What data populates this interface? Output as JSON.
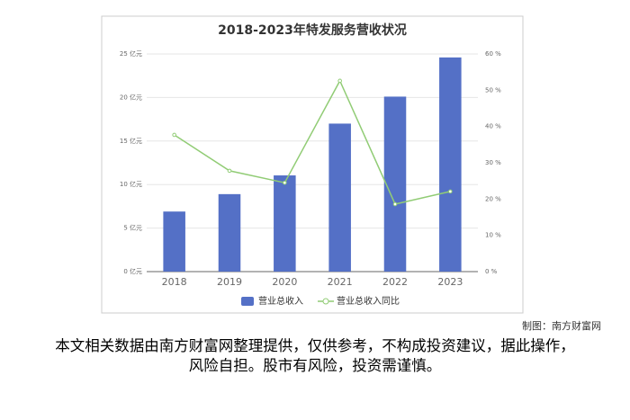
{
  "chart_data": {
    "type": "bar",
    "title": "2018-2023年特发服务营收状况",
    "categories": [
      "2018",
      "2019",
      "2020",
      "2021",
      "2022",
      "2023"
    ],
    "series": [
      {
        "name": "营业总收入",
        "type": "bar",
        "color": "#5470c6",
        "values": [
          6.9,
          8.9,
          11.05,
          17.0,
          20.1,
          24.6
        ]
      },
      {
        "name": "营业总收入同比",
        "type": "line",
        "axis": "y2",
        "color": "#91cc75",
        "values": [
          37.7,
          27.8,
          24.5,
          52.6,
          18.6,
          22.1
        ]
      }
    ],
    "ylim": [
      0,
      25
    ],
    "yticks": [
      {
        "value": 0,
        "label": "0 亿元"
      },
      {
        "value": 5,
        "label": "5 亿元"
      },
      {
        "value": 10,
        "label": "10 亿元"
      },
      {
        "value": 15,
        "label": "15 亿元"
      },
      {
        "value": 20,
        "label": "20 亿元"
      },
      {
        "value": 25,
        "label": "25 亿元"
      }
    ],
    "y2lim": [
      0,
      60
    ],
    "y2ticks": [
      {
        "value": 0,
        "label": "0 %"
      },
      {
        "value": 10,
        "label": "10 %"
      },
      {
        "value": 20,
        "label": "20 %"
      },
      {
        "value": 30,
        "label": "30 %"
      },
      {
        "value": 40,
        "label": "40 %"
      },
      {
        "value": 50,
        "label": "50 %"
      },
      {
        "value": 60,
        "label": "60 %"
      }
    ],
    "grid": true,
    "legend": "bottom"
  },
  "credit": "制图：南方财富网",
  "disclaimer": "本文相关数据由南方财富网整理提供，仅供参考，不构成投资建议，据此操作，风险自担。股市有风险，投资需谨慎。"
}
